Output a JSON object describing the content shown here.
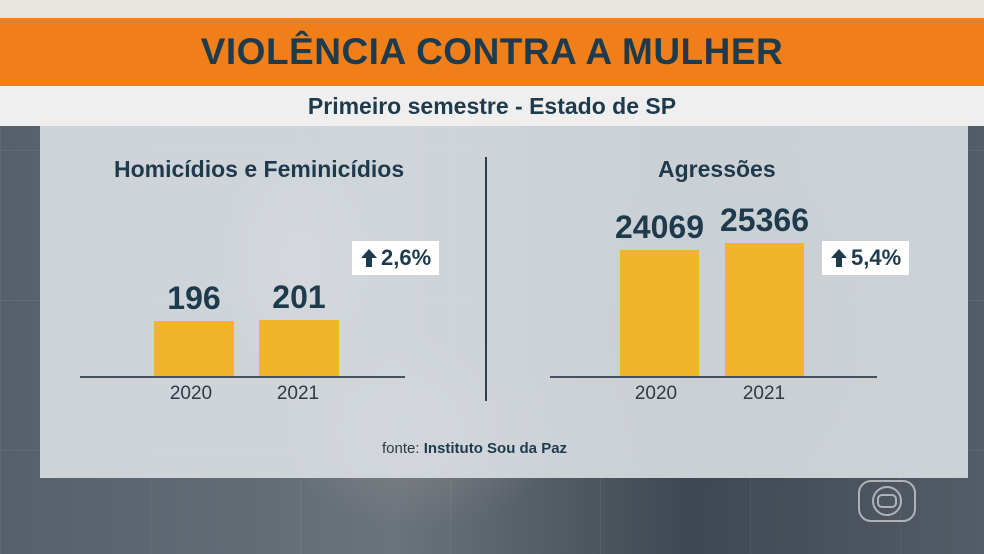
{
  "header": {
    "title": "VIOLÊNCIA CONTRA A MULHER",
    "subtitle": "Primeiro semestre - Estado de SP"
  },
  "source": {
    "prefix": "fonte:",
    "name": "Instituto Sou da Paz"
  },
  "colors": {
    "title_bar": "#f07f1a",
    "bar": "#f0b52a",
    "text": "#1e3a4d"
  },
  "logo_icon": "globo-logo-icon",
  "chart_data": [
    {
      "type": "bar",
      "title": "Homicídios e Feminicídios",
      "categories": [
        "2020",
        "2021"
      ],
      "values": [
        196,
        201
      ],
      "value_labels": [
        "196",
        "201"
      ],
      "change_label": "2,6%",
      "change_icon": "arrow-up-icon",
      "xlabel": "",
      "ylabel": ""
    },
    {
      "type": "bar",
      "title": "Agressões",
      "categories": [
        "2020",
        "2021"
      ],
      "values": [
        24069,
        25366
      ],
      "value_labels": [
        "24069",
        "25366"
      ],
      "change_label": "5,4%",
      "change_icon": "arrow-up-icon",
      "xlabel": "",
      "ylabel": ""
    }
  ]
}
